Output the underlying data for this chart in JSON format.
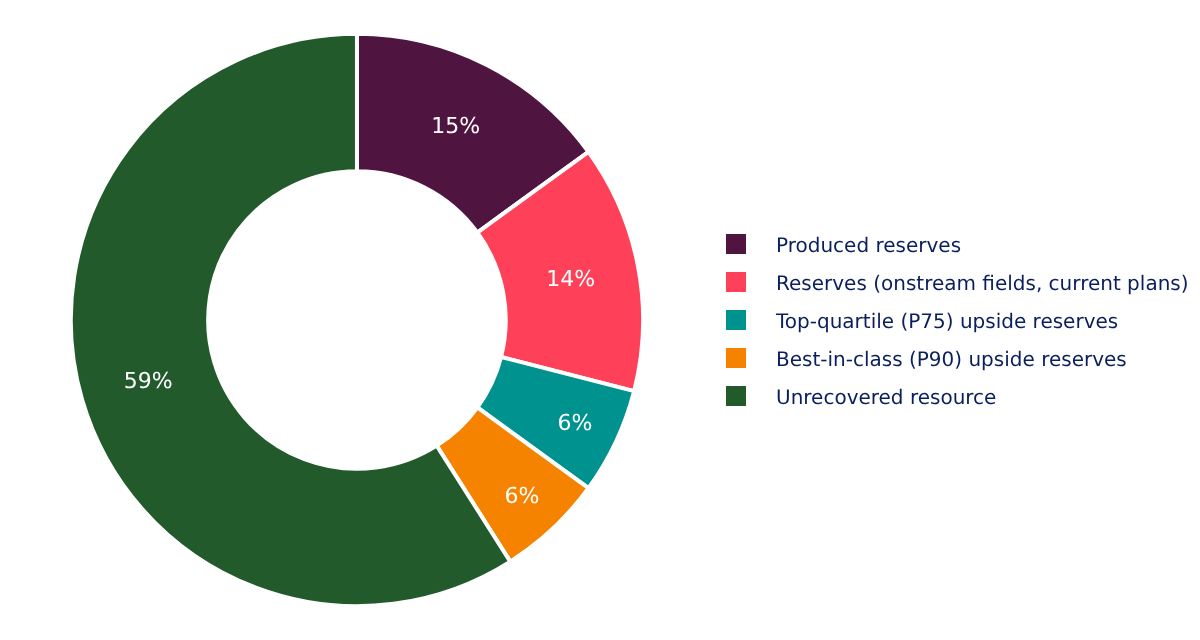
{
  "chart_data": {
    "type": "donut",
    "categories": [
      "Produced reserves",
      "Reserves (onstream fields, current plans)",
      "Top-quartile (P75) upside reserves",
      "Best-in-class (P90) upside reserves",
      "Unrecovered resource"
    ],
    "values": [
      15,
      14,
      6,
      6,
      59
    ],
    "value_labels": [
      "15%",
      "14%",
      "6%",
      "6%",
      "59%"
    ],
    "colors": [
      "#4f1540",
      "#ff4059",
      "#00928f",
      "#f58300",
      "#225a2c"
    ],
    "legend": "right"
  }
}
